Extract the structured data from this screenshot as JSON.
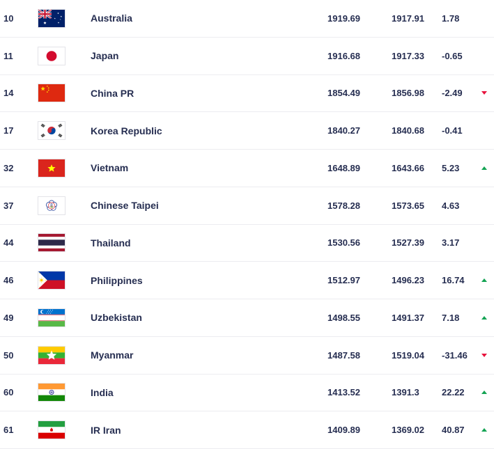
{
  "table": {
    "description": "FIFA ranking table fragment",
    "colors": {
      "text": "#262e51",
      "divider": "#ececf0",
      "trend_up": "#13a353",
      "trend_down": "#e8133d",
      "row_background": "#ffffff"
    },
    "rows": [
      {
        "rank": "10",
        "country": "Australia",
        "flag_icon": "australia-flag",
        "points": "1919.69",
        "prev_points": "1917.91",
        "change": "1.78",
        "trend": "none"
      },
      {
        "rank": "11",
        "country": "Japan",
        "flag_icon": "japan-flag",
        "points": "1916.68",
        "prev_points": "1917.33",
        "change": "-0.65",
        "trend": "none"
      },
      {
        "rank": "14",
        "country": "China PR",
        "flag_icon": "china-pr-flag",
        "points": "1854.49",
        "prev_points": "1856.98",
        "change": "-2.49",
        "trend": "down"
      },
      {
        "rank": "17",
        "country": "Korea Republic",
        "flag_icon": "korea-republic-flag",
        "points": "1840.27",
        "prev_points": "1840.68",
        "change": "-0.41",
        "trend": "none"
      },
      {
        "rank": "32",
        "country": "Vietnam",
        "flag_icon": "vietnam-flag",
        "points": "1648.89",
        "prev_points": "1643.66",
        "change": "5.23",
        "trend": "up"
      },
      {
        "rank": "37",
        "country": "Chinese Taipei",
        "flag_icon": "chinese-taipei-flag",
        "points": "1578.28",
        "prev_points": "1573.65",
        "change": "4.63",
        "trend": "none"
      },
      {
        "rank": "44",
        "country": "Thailand",
        "flag_icon": "thailand-flag",
        "points": "1530.56",
        "prev_points": "1527.39",
        "change": "3.17",
        "trend": "none"
      },
      {
        "rank": "46",
        "country": "Philippines",
        "flag_icon": "philippines-flag",
        "points": "1512.97",
        "prev_points": "1496.23",
        "change": "16.74",
        "trend": "up"
      },
      {
        "rank": "49",
        "country": "Uzbekistan",
        "flag_icon": "uzbekistan-flag",
        "points": "1498.55",
        "prev_points": "1491.37",
        "change": "7.18",
        "trend": "up"
      },
      {
        "rank": "50",
        "country": "Myanmar",
        "flag_icon": "myanmar-flag",
        "points": "1487.58",
        "prev_points": "1519.04",
        "change": "-31.46",
        "trend": "down"
      },
      {
        "rank": "60",
        "country": "India",
        "flag_icon": "india-flag",
        "points": "1413.52",
        "prev_points": "1391.3",
        "change": "22.22",
        "trend": "up"
      },
      {
        "rank": "61",
        "country": "IR Iran",
        "flag_icon": "ir-iran-flag",
        "points": "1409.89",
        "prev_points": "1369.02",
        "change": "40.87",
        "trend": "up"
      }
    ]
  }
}
